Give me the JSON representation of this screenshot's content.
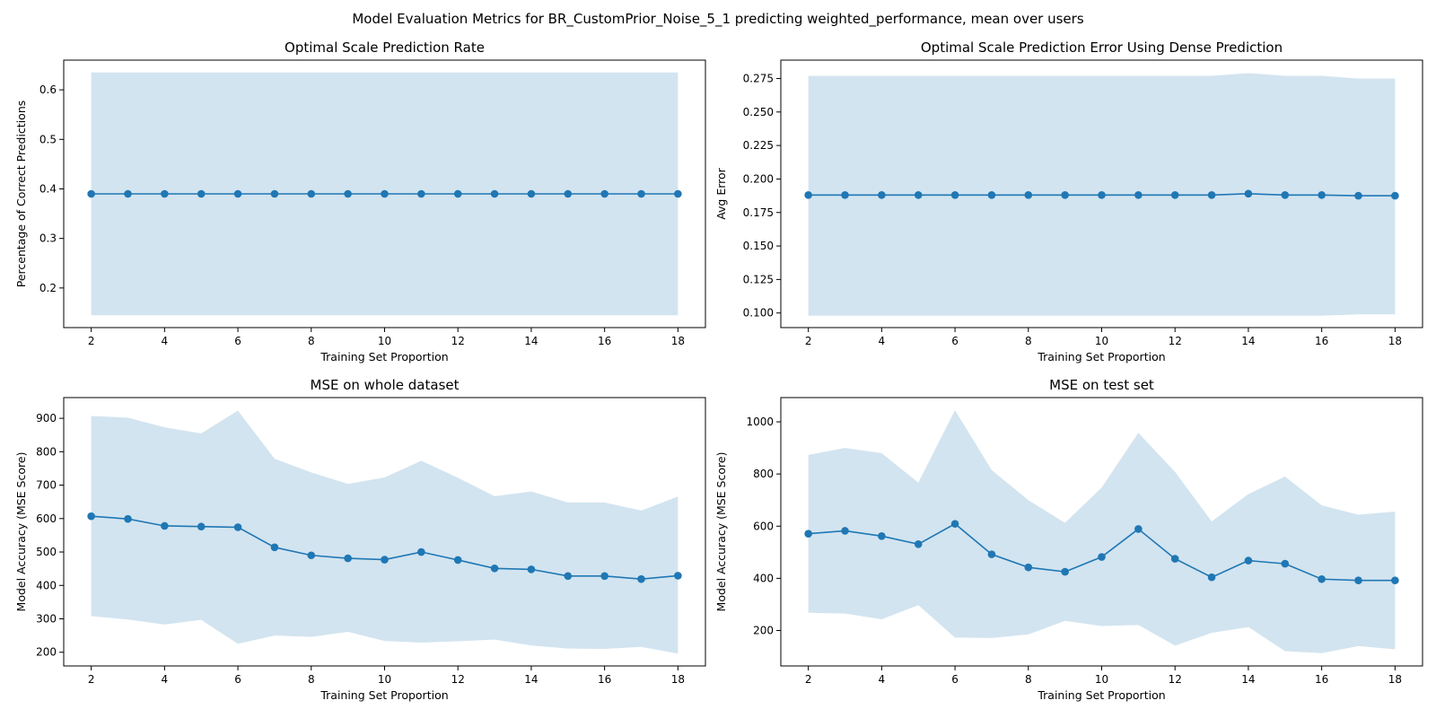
{
  "figure": {
    "title": "Model Evaluation Metrics for BR_CustomPrior_Noise_5_1 predicting weighted_performance, mean over users",
    "colors": {
      "line": "#1f77b4",
      "band": "#1f77b4"
    }
  },
  "chart_data": [
    {
      "type": "line",
      "title": "Optimal Scale Prediction Rate",
      "xlabel": "Training Set Proportion",
      "ylabel": "Percentage of Correct Predictions",
      "x": [
        2,
        3,
        4,
        5,
        6,
        7,
        8,
        9,
        10,
        11,
        12,
        13,
        14,
        15,
        16,
        17,
        18
      ],
      "xlim": [
        1.25,
        18.75
      ],
      "ylim": [
        0.12,
        0.66
      ],
      "xticks": [
        2,
        4,
        6,
        8,
        10,
        12,
        14,
        16,
        18
      ],
      "yticks": [
        0.2,
        0.3,
        0.4,
        0.5,
        0.6
      ],
      "ytick_labels": [
        "0.2",
        "0.3",
        "0.4",
        "0.5",
        "0.6"
      ],
      "series": [
        {
          "name": "mean",
          "values": [
            0.39,
            0.39,
            0.39,
            0.39,
            0.39,
            0.39,
            0.39,
            0.39,
            0.39,
            0.39,
            0.39,
            0.39,
            0.39,
            0.39,
            0.39,
            0.39,
            0.39
          ],
          "band_upper": [
            0.635,
            0.635,
            0.635,
            0.635,
            0.635,
            0.635,
            0.635,
            0.635,
            0.635,
            0.635,
            0.635,
            0.635,
            0.635,
            0.635,
            0.635,
            0.635,
            0.635
          ],
          "band_lower": [
            0.145,
            0.145,
            0.145,
            0.145,
            0.145,
            0.145,
            0.145,
            0.145,
            0.145,
            0.145,
            0.145,
            0.145,
            0.145,
            0.145,
            0.145,
            0.145,
            0.145
          ]
        }
      ]
    },
    {
      "type": "line",
      "title": "Optimal Scale Prediction Error Using Dense Prediction",
      "xlabel": "Training Set Proportion",
      "ylabel": "Avg Error",
      "x": [
        2,
        3,
        4,
        5,
        6,
        7,
        8,
        9,
        10,
        11,
        12,
        13,
        14,
        15,
        16,
        17,
        18
      ],
      "xlim": [
        1.25,
        18.75
      ],
      "ylim": [
        0.0891,
        0.2887
      ],
      "xticks": [
        2,
        4,
        6,
        8,
        10,
        12,
        14,
        16,
        18
      ],
      "yticks": [
        0.1,
        0.125,
        0.15,
        0.175,
        0.2,
        0.225,
        0.25,
        0.275
      ],
      "ytick_labels": [
        "0.100",
        "0.125",
        "0.150",
        "0.175",
        "0.200",
        "0.225",
        "0.250",
        "0.275"
      ],
      "series": [
        {
          "name": "mean",
          "values": [
            0.188,
            0.188,
            0.188,
            0.188,
            0.188,
            0.188,
            0.188,
            0.188,
            0.188,
            0.188,
            0.188,
            0.188,
            0.189,
            0.188,
            0.188,
            0.1875,
            0.1875
          ],
          "band_upper": [
            0.277,
            0.277,
            0.277,
            0.277,
            0.277,
            0.277,
            0.277,
            0.277,
            0.277,
            0.277,
            0.277,
            0.277,
            0.279,
            0.277,
            0.277,
            0.275,
            0.275
          ],
          "band_lower": [
            0.098,
            0.098,
            0.098,
            0.098,
            0.098,
            0.098,
            0.098,
            0.098,
            0.098,
            0.098,
            0.098,
            0.098,
            0.098,
            0.098,
            0.098,
            0.099,
            0.099
          ]
        }
      ]
    },
    {
      "type": "line",
      "title": "MSE on whole dataset",
      "xlabel": "Training Set Proportion",
      "ylabel": "Model Accuracy (MSE Score)",
      "x": [
        2,
        3,
        4,
        5,
        6,
        7,
        8,
        9,
        10,
        11,
        12,
        13,
        14,
        15,
        16,
        17,
        18
      ],
      "xlim": [
        1.25,
        18.75
      ],
      "ylim": [
        159,
        962
      ],
      "xticks": [
        2,
        4,
        6,
        8,
        10,
        12,
        14,
        16,
        18
      ],
      "yticks": [
        200,
        300,
        400,
        500,
        600,
        700,
        800,
        900
      ],
      "ytick_labels": [
        "200",
        "300",
        "400",
        "500",
        "600",
        "700",
        "800",
        "900"
      ],
      "series": [
        {
          "name": "mean",
          "values": [
            607,
            599,
            578,
            576,
            574,
            514,
            490,
            481,
            477,
            500,
            476,
            451,
            448,
            428,
            428,
            419,
            429
          ],
          "band_upper": [
            907,
            902,
            873,
            855,
            923,
            779,
            738,
            704,
            723,
            773,
            722,
            667,
            681,
            648,
            648,
            624,
            666
          ],
          "band_lower": [
            308,
            298,
            283,
            297,
            225,
            250,
            246,
            261,
            234,
            229,
            233,
            238,
            220,
            211,
            210,
            216,
            196
          ]
        }
      ]
    },
    {
      "type": "line",
      "title": "MSE on test set",
      "xlabel": "Training Set Proportion",
      "ylabel": "Model Accuracy (MSE Score)",
      "x": [
        2,
        3,
        4,
        5,
        6,
        7,
        8,
        9,
        10,
        11,
        12,
        13,
        14,
        15,
        16,
        17,
        18
      ],
      "xlim": [
        1.25,
        18.75
      ],
      "ylim": [
        64,
        1093
      ],
      "xticks": [
        2,
        4,
        6,
        8,
        10,
        12,
        14,
        16,
        18
      ],
      "yticks": [
        200,
        400,
        600,
        800,
        1000
      ],
      "ytick_labels": [
        "200",
        "400",
        "600",
        "800",
        "1000"
      ],
      "series": [
        {
          "name": "mean",
          "values": [
            571,
            582,
            562,
            531,
            609,
            492,
            442,
            425,
            482,
            589,
            475,
            404,
            468,
            456,
            397,
            392,
            392
          ],
          "band_upper": [
            873,
            900,
            880,
            767,
            1045,
            815,
            700,
            613,
            748,
            958,
            808,
            618,
            723,
            790,
            680,
            644,
            656
          ],
          "band_lower": [
            268,
            265,
            243,
            297,
            173,
            171,
            185,
            237,
            217,
            221,
            142,
            191,
            213,
            121,
            113,
            140,
            128
          ]
        }
      ]
    }
  ]
}
